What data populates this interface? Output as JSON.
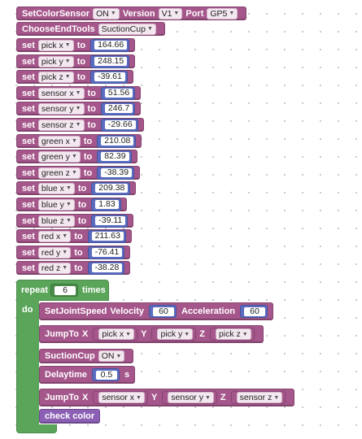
{
  "header": {
    "set_color_sensor": "SetColorSensor",
    "sensor_state": "ON",
    "version_label": "Version",
    "version_value": "V1",
    "port_label": "Port",
    "port_value": "GP5"
  },
  "end_tools": {
    "label": "ChooseEndTools",
    "value": "SuctionCup"
  },
  "set_word": "set",
  "to_word": "to",
  "variables": [
    {
      "name": "pick x",
      "value": "164.66"
    },
    {
      "name": "pick y",
      "value": "248.15"
    },
    {
      "name": "pick z",
      "value": "-39.61"
    },
    {
      "name": "sensor x",
      "value": "51.56"
    },
    {
      "name": "sensor y",
      "value": "246.7"
    },
    {
      "name": "sensor z",
      "value": "-29.66"
    },
    {
      "name": "green x",
      "value": "210.08"
    },
    {
      "name": "green y",
      "value": "82.39"
    },
    {
      "name": "green z",
      "value": "-38.39"
    },
    {
      "name": "blue x",
      "value": "209.38"
    },
    {
      "name": "blue y",
      "value": "1.83"
    },
    {
      "name": "blue z",
      "value": "-39.11"
    },
    {
      "name": "red x",
      "value": "211.63"
    },
    {
      "name": "red y",
      "value": "-76.41"
    },
    {
      "name": "red z",
      "value": "-38.28"
    }
  ],
  "repeat": {
    "label": "repeat",
    "count": "6",
    "times_label": "times",
    "do_label": "do"
  },
  "joint_speed": {
    "label": "SetJointSpeed",
    "velocity_label": "Velocity",
    "velocity": "60",
    "accel_label": "Acceleration",
    "accel": "60"
  },
  "jump1": {
    "label": "JumpTo",
    "x_label": "X",
    "x_var": "pick x",
    "y_label": "Y",
    "y_var": "pick y",
    "z_label": "Z",
    "z_var": "pick z"
  },
  "suction": {
    "label": "SuctionCup",
    "state": "ON"
  },
  "delay": {
    "label": "Delaytime",
    "value": "0.5",
    "unit": "s"
  },
  "jump2": {
    "label": "JumpTo",
    "x_label": "X",
    "x_var": "sensor x",
    "y_label": "Y",
    "y_var": "sensor y",
    "z_label": "Z",
    "z_var": "sensor z"
  },
  "check_color": "check color",
  "colors": {
    "variable_block": "#a5568b",
    "number_block": "#5a6bc0",
    "loop_block": "#5ba55b",
    "function_call": "#8b5fb3"
  }
}
